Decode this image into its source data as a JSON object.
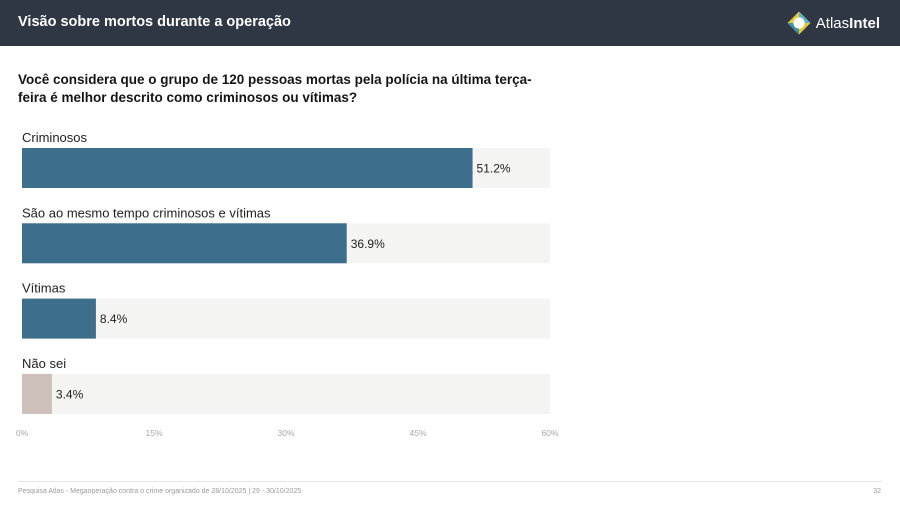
{
  "header": {
    "title": "Visão sobre mortos durante a operação",
    "brand": {
      "part1": "Atlas",
      "part2": "Intel"
    }
  },
  "question": "Você considera que o grupo de 120 pessoas mortas pela polícia na última terça-feira é melhor descrito como criminosos ou vítimas?",
  "chart_data": {
    "type": "bar",
    "orientation": "horizontal",
    "categories": [
      "Criminosos",
      "São ao mesmo tempo criminosos e vítimas",
      "Vítimas",
      "Não sei"
    ],
    "values": [
      51.2,
      36.9,
      8.4,
      3.4
    ],
    "value_labels": [
      "51.2%",
      "36.9%",
      "8.4%",
      "3.4%"
    ],
    "colors": [
      "#3d6f8c",
      "#3d6f8c",
      "#3d6f8c",
      "#cdbfba"
    ],
    "track_color": "#f4f4f2",
    "xlim": [
      0,
      60
    ],
    "ticks": [
      0,
      15,
      30,
      45,
      60
    ],
    "tick_labels": [
      "0%",
      "15%",
      "30%",
      "45%",
      "60%"
    ],
    "title": "",
    "xlabel": "",
    "ylabel": ""
  },
  "footer": {
    "source": "Pesquisa Atlas - Megaoperação contra o crime organizado de 28/10/2025 | 29 - 30/10/2025",
    "page": "32"
  }
}
